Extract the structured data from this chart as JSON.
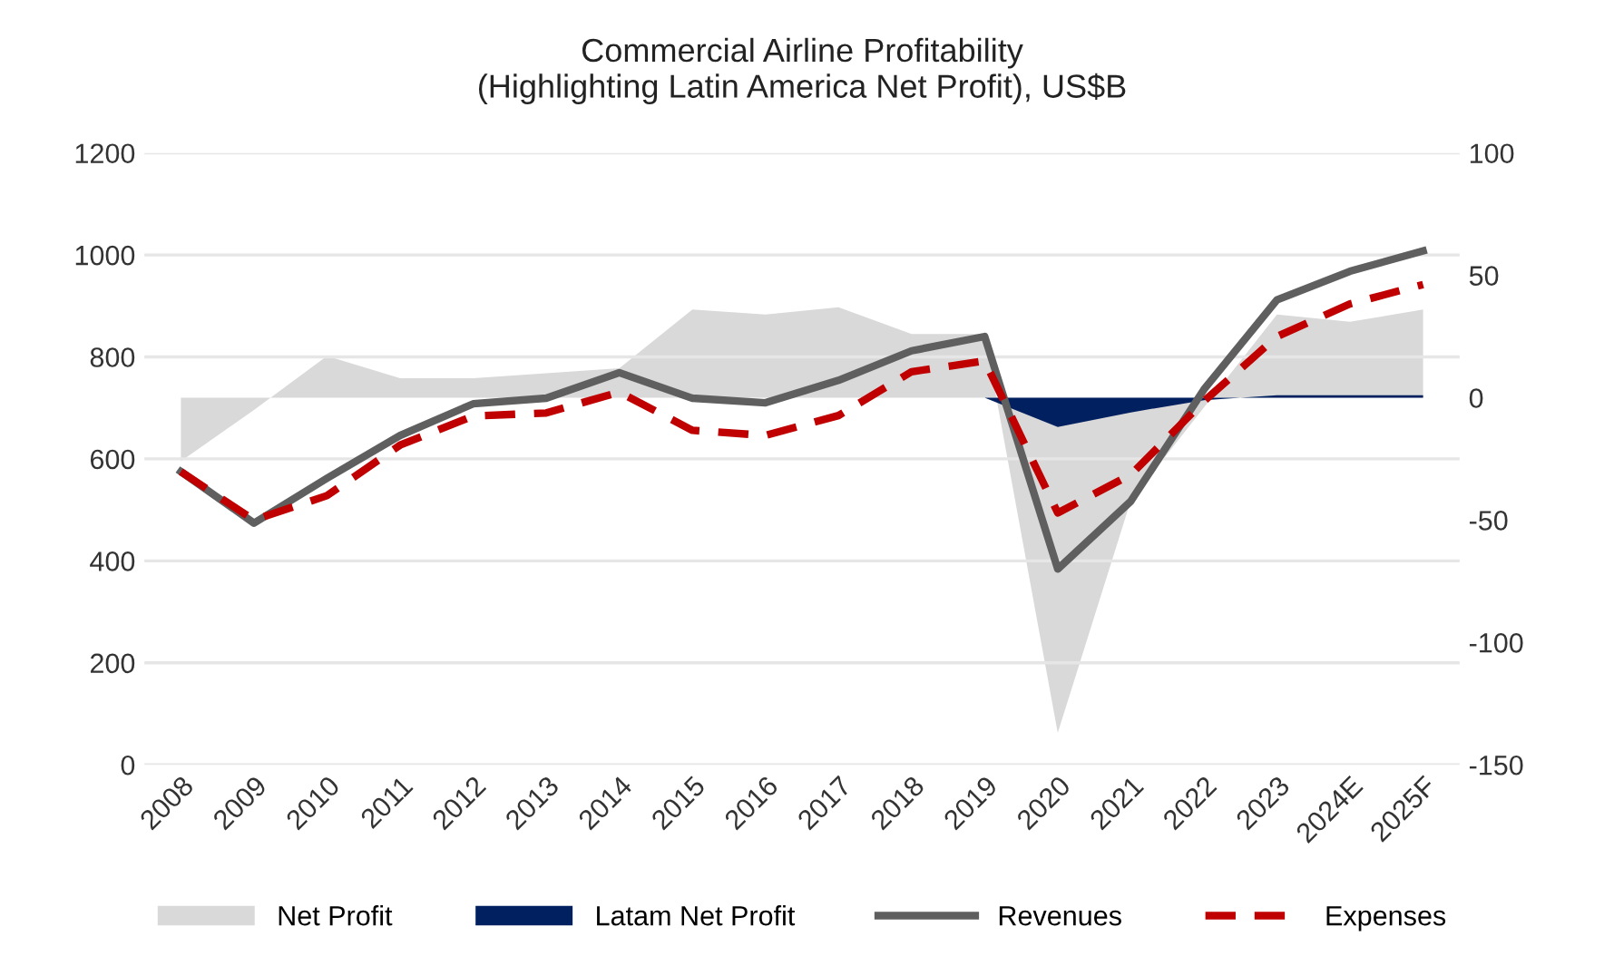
{
  "chart_data": {
    "type": "line",
    "title": "Commercial Airline Profitability\n(Highlighting Latin America Net Profit), US$B",
    "categories": [
      "2008",
      "2009",
      "2010",
      "2011",
      "2012",
      "2013",
      "2014",
      "2015",
      "2016",
      "2017",
      "2018",
      "2019",
      "2020",
      "2021",
      "2022",
      "2023",
      "2024E",
      "2025F"
    ],
    "series": [
      {
        "name": "Net Profit",
        "type": "area",
        "axis": "y2",
        "color": "#d9d9d9",
        "values": [
          -26,
          -5,
          17,
          8,
          8,
          10,
          12,
          36,
          34,
          37,
          26,
          26,
          -137,
          -42,
          -4,
          34,
          31,
          36
        ]
      },
      {
        "name": "Latam Net Profit",
        "type": "area",
        "axis": "y2",
        "color": "#002060",
        "values": [
          0,
          0,
          0,
          0,
          0,
          0,
          0,
          0,
          0,
          0,
          0,
          0,
          -12,
          -6,
          -1,
          1,
          1,
          1
        ]
      },
      {
        "name": "Revenues",
        "line_style": "solid",
        "color": "#5f5f5f",
        "values": [
          575,
          474,
          562,
          646,
          708,
          719,
          769,
          719,
          710,
          754,
          812,
          840,
          384,
          517,
          736,
          912,
          968,
          1008
        ]
      },
      {
        "name": "Expenses",
        "line_style": "dashed",
        "color": "#c00000",
        "values": [
          575,
          480,
          528,
          627,
          684,
          690,
          731,
          656,
          646,
          685,
          771,
          792,
          494,
          569,
          713,
          840,
          904,
          942
        ]
      }
    ],
    "ylim": [
      0,
      1200
    ],
    "yticks": [
      0,
      200,
      400,
      600,
      800,
      1000,
      1200
    ],
    "y2lim": [
      -150,
      100
    ],
    "y2ticks": [
      -150,
      -100,
      -50,
      0,
      50,
      100
    ],
    "grid": "y",
    "legend": "bottom",
    "marker": "none"
  }
}
